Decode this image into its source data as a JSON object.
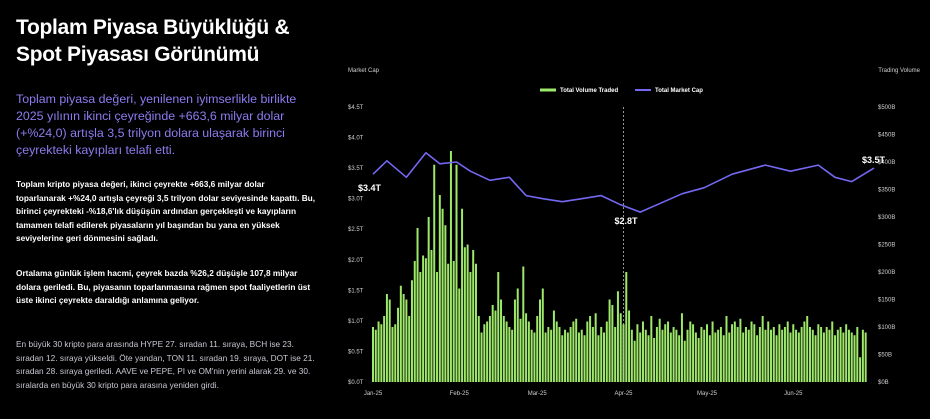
{
  "header": {
    "title": "Toplam Piyasa Büyüklüğü & Spot Piyasası Görünümü",
    "lead": "Toplam piyasa değeri, yenilenen iyimserlikle birlikte 2025 yılının ikinci çeyreğinde +663,6 milyar dolar (+%24,0) artışla 3,5 trilyon dolara ulaşarak birinci çeyrekteki kayıpları telafi etti."
  },
  "body": {
    "p1": "Toplam kripto piyasa değeri, ikinci çeyrekte +663,6 milyar dolar toparlanarak +%24,0 artışla çeyreği 3,5 trilyon dolar seviyesinde kapattı. Bu, birinci çeyrekteki -%18,6'lık düşüşün ardından gerçekleşti ve kayıpların tamamen telafi edilerek piyasaların yıl başından bu yana en yüksek seviyelerine geri dönmesini sağladı.",
    "p2": "Ortalama günlük işlem hacmi, çeyrek bazda %26,2 düşüşle 107,8 milyar dolara geriledi. Bu, piyasanın toparlanmasına rağmen spot faaliyetlerin üst üste ikinci çeyrekte daraldığı anlamına geliyor.",
    "p3": "En büyük 30 kripto para arasında HYPE 27. sıradan 11. sıraya, BCH ise 23. sıradan 12. sıraya yükseldi. Öte yandan, TON 11. sıradan 19. sıraya, DOT ise 21. sıradan 28. sıraya geriledi. AAVE ve PEPE, PI ve OM'nin yerini alarak 29. ve 30. sıralarda en büyük 30 kripto para arasına yeniden girdi."
  },
  "chart_data": {
    "type": "bar+line",
    "left_axis_title": "Market Cap",
    "right_axis_title": "Trading Volume",
    "left_ticks": [
      "$0.0T",
      "$0.5T",
      "$1.0T",
      "$1.5T",
      "$2.0T",
      "$2.5T",
      "$3.0T",
      "$3.5T",
      "$4.0T",
      "$4.5T"
    ],
    "right_ticks": [
      "$0B",
      "$50B",
      "$100B",
      "$150B",
      "$200B",
      "$250B",
      "$300B",
      "$350B",
      "$400B",
      "$450B",
      "$500B"
    ],
    "left_range": [
      0,
      4.5
    ],
    "right_range": [
      0,
      500
    ],
    "x_range": [
      "2025-01-01",
      "2025-06-30"
    ],
    "x_ticks": [
      {
        "date": "2025-01-01",
        "label": "Jan-25"
      },
      {
        "date": "2025-02-01",
        "label": "Feb-25"
      },
      {
        "date": "2025-03-01",
        "label": "Mar-25"
      },
      {
        "date": "2025-04-01",
        "label": "Apr-25"
      },
      {
        "date": "2025-05-01",
        "label": "May-25"
      },
      {
        "date": "2025-06-01",
        "label": "Jun-25"
      }
    ],
    "legend_placement": "top-center",
    "series": [
      {
        "name": "Total Volume Traded",
        "kind": "bar",
        "axis": "right",
        "color": "#9ee86a",
        "start_date": "2025-01-01",
        "unit": "B",
        "values": [
          100,
          95,
          110,
          105,
          120,
          160,
          150,
          100,
          105,
          135,
          175,
          160,
          150,
          120,
          185,
          220,
          280,
          200,
          230,
          225,
          300,
          240,
          395,
          200,
          340,
          315,
          285,
          215,
          420,
          220,
          395,
          170,
          315,
          245,
          250,
          200,
          240,
          215,
          120,
          90,
          105,
          110,
          120,
          140,
          130,
          200,
          150,
          120,
          110,
          100,
          95,
          150,
          170,
          115,
          210,
          125,
          110,
          95,
          90,
          120,
          150,
          170,
          90,
          100,
          95,
          130,
          110,
          100,
          85,
          95,
          90,
          100,
          110,
          115,
          90,
          95,
          85,
          110,
          120,
          100,
          125,
          85,
          100,
          90,
          110,
          150,
          140,
          100,
          165,
          125,
          105,
          200,
          130,
          95,
          75,
          105,
          90,
          110,
          95,
          85,
          120,
          80,
          100,
          115,
          95,
          105,
          110,
          90,
          100,
          95,
          85,
          125,
          75,
          95,
          110,
          105,
          90,
          80,
          100,
          95,
          105,
          85,
          110,
          90,
          95,
          100,
          85,
          120,
          90,
          105,
          110,
          100,
          115,
          90,
          100,
          95,
          110,
          105,
          85,
          100,
          120,
          95,
          110,
          95,
          100,
          85,
          105,
          95,
          100,
          110,
          90,
          105,
          95,
          90,
          100,
          110,
          120,
          100,
          95,
          85,
          105,
          100,
          90,
          100,
          95,
          110,
          85,
          95,
          100,
          90,
          105,
          95,
          90,
          85,
          100,
          45,
          95,
          90
        ]
      },
      {
        "name": "Total Market Cap",
        "kind": "line",
        "axis": "left",
        "color": "#7468f2",
        "points": [
          [
            "2025-01-01",
            3.4
          ],
          [
            "2025-01-06",
            3.62
          ],
          [
            "2025-01-13",
            3.35
          ],
          [
            "2025-01-20",
            3.75
          ],
          [
            "2025-01-25",
            3.57
          ],
          [
            "2025-01-31",
            3.6
          ],
          [
            "2025-02-05",
            3.45
          ],
          [
            "2025-02-12",
            3.3
          ],
          [
            "2025-02-19",
            3.35
          ],
          [
            "2025-02-25",
            3.05
          ],
          [
            "2025-03-03",
            3.0
          ],
          [
            "2025-03-10",
            2.95
          ],
          [
            "2025-03-17",
            3.0
          ],
          [
            "2025-03-24",
            3.05
          ],
          [
            "2025-03-31",
            2.9
          ],
          [
            "2025-04-07",
            2.78
          ],
          [
            "2025-04-13",
            2.9
          ],
          [
            "2025-04-22",
            3.08
          ],
          [
            "2025-04-30",
            3.18
          ],
          [
            "2025-05-10",
            3.4
          ],
          [
            "2025-05-22",
            3.55
          ],
          [
            "2025-05-31",
            3.45
          ],
          [
            "2025-06-10",
            3.55
          ],
          [
            "2025-06-16",
            3.35
          ],
          [
            "2025-06-22",
            3.28
          ],
          [
            "2025-06-30",
            3.5
          ]
        ]
      }
    ],
    "annotations": [
      {
        "text": "$3.4T",
        "date": "2025-01-01",
        "value": 3.4
      },
      {
        "text": "$2.8T",
        "date": "2025-04-01",
        "value": 2.8
      },
      {
        "text": "$3.5T",
        "date": "2025-06-30",
        "value": 3.5
      }
    ],
    "reference_line_date": "2025-04-01"
  }
}
